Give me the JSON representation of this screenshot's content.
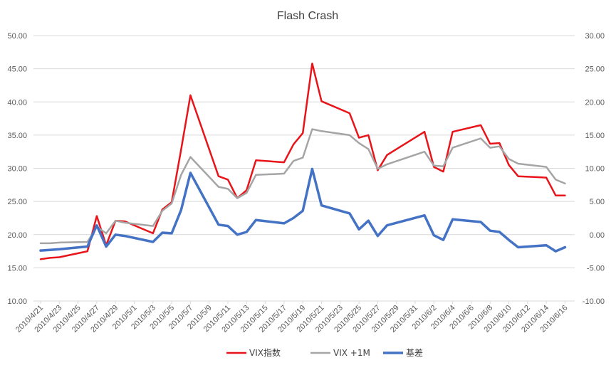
{
  "chart_data": {
    "type": "line",
    "title": "Flash Crash",
    "x": [
      "2010/4/21",
      "2010/4/22",
      "2010/4/23",
      "2010/4/26",
      "2010/4/27",
      "2010/4/28",
      "2010/4/29",
      "2010/4/30",
      "2010/5/3",
      "2010/5/4",
      "2010/5/5",
      "2010/5/6",
      "2010/5/7",
      "2010/5/10",
      "2010/5/11",
      "2010/5/12",
      "2010/5/13",
      "2010/5/14",
      "2010/5/17",
      "2010/5/18",
      "2010/5/19",
      "2010/5/20",
      "2010/5/21",
      "2010/5/24",
      "2010/5/25",
      "2010/5/26",
      "2010/5/27",
      "2010/5/28",
      "2010/6/1",
      "2010/6/2",
      "2010/6/3",
      "2010/6/4",
      "2010/6/7",
      "2010/6/8",
      "2010/6/9",
      "2010/6/10",
      "2010/6/11",
      "2010/6/14",
      "2010/6/15",
      "2010/6/16"
    ],
    "x_tick_labels": [
      "2010/4/21",
      "2010/4/23",
      "2010/4/25",
      "2010/4/27",
      "2010/4/29",
      "2010/5/1",
      "2010/5/3",
      "2010/5/5",
      "2010/5/7",
      "2010/5/9",
      "2010/5/11",
      "2010/5/13",
      "2010/5/15",
      "2010/5/17",
      "2010/5/19",
      "2010/5/21",
      "2010/5/23",
      "2010/5/25",
      "2010/5/27",
      "2010/5/29",
      "2010/5/31",
      "2010/6/2",
      "2010/6/4",
      "2010/6/6",
      "2010/6/8",
      "2010/6/10",
      "2010/6/12",
      "2010/6/14",
      "2010/6/16"
    ],
    "y_left_ticks": [
      "10.00",
      "15.00",
      "20.00",
      "25.00",
      "30.00",
      "35.00",
      "40.00",
      "45.00",
      "50.00"
    ],
    "y_right_ticks": [
      "-10.00",
      "-5.00",
      "0.00",
      "5.00",
      "10.00",
      "15.00",
      "20.00",
      "25.00",
      "30.00"
    ],
    "ylim_left": [
      10,
      50
    ],
    "ylim_right": [
      -10,
      30
    ],
    "series": [
      {
        "name": "VIX指数",
        "axis": "left",
        "color": "#e8141a",
        "values": [
          16.3,
          16.5,
          16.6,
          17.5,
          22.8,
          18.4,
          22.1,
          22.0,
          20.2,
          23.8,
          24.9,
          32.8,
          41.0,
          28.8,
          28.3,
          25.5,
          26.7,
          31.2,
          30.9,
          33.6,
          35.3,
          45.8,
          40.1,
          38.3,
          34.6,
          35.0,
          29.7,
          32.0,
          35.5,
          30.2,
          29.5,
          35.5,
          36.5,
          33.7,
          33.8,
          30.5,
          28.8,
          28.6,
          25.9,
          25.9
        ]
      },
      {
        "name": "VIX +1M",
        "axis": "left",
        "color": "#a5a5a5",
        "values": [
          18.7,
          18.7,
          18.8,
          18.9,
          21.2,
          20.2,
          22.1,
          21.8,
          21.3,
          23.6,
          24.7,
          29.0,
          31.7,
          27.2,
          26.9,
          25.5,
          26.3,
          29.0,
          29.2,
          31.1,
          31.6,
          35.9,
          35.6,
          35.0,
          33.8,
          32.9,
          29.9,
          30.6,
          32.5,
          30.4,
          30.3,
          33.1,
          34.5,
          33.1,
          33.3,
          31.4,
          30.7,
          30.2,
          28.3,
          27.7
        ]
      },
      {
        "name": "基差",
        "axis": "right",
        "color": "#4472c4",
        "values": [
          -2.4,
          -2.3,
          -2.2,
          -1.8,
          1.4,
          -1.8,
          0.0,
          -0.2,
          -1.1,
          0.3,
          0.2,
          3.7,
          9.3,
          1.5,
          1.3,
          0.0,
          0.4,
          2.2,
          1.7,
          2.5,
          3.6,
          9.9,
          4.4,
          3.2,
          0.8,
          2.1,
          -0.2,
          1.4,
          2.9,
          -0.1,
          -0.8,
          2.3,
          1.9,
          0.6,
          0.4,
          -0.8,
          -1.9,
          -1.6,
          -2.5,
          -1.9
        ]
      }
    ],
    "grid": true,
    "legend_placement": "bottom"
  }
}
